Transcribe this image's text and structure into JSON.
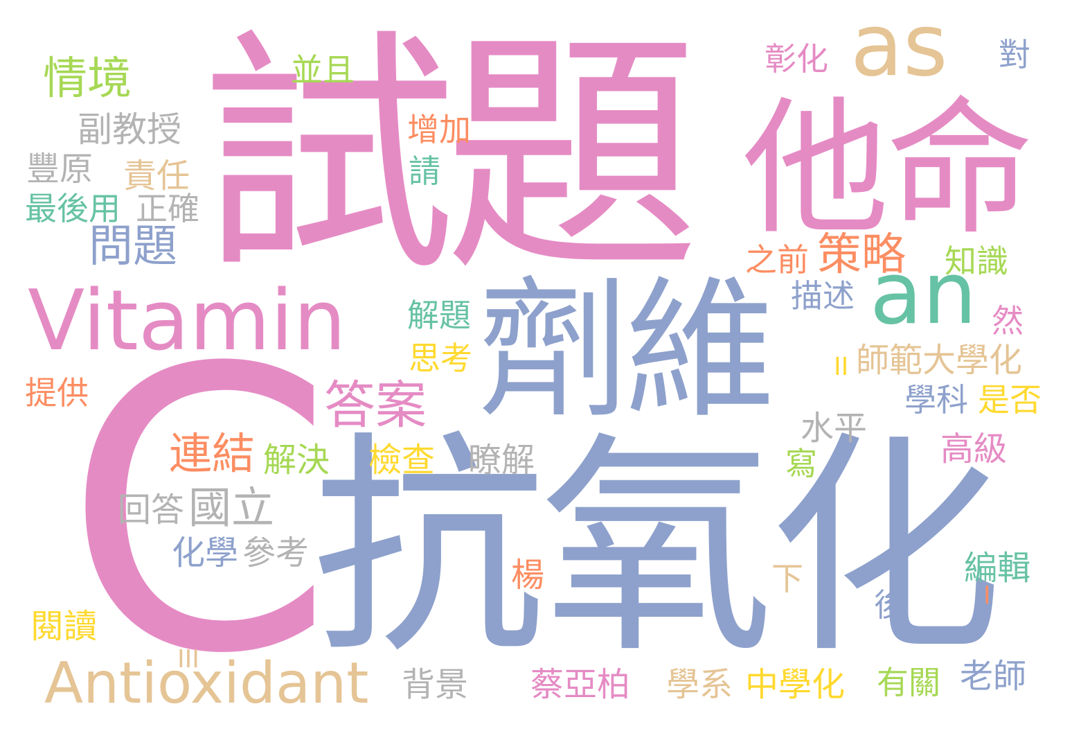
{
  "palette": {
    "pink": "#e58bc4",
    "blue": "#8ea1cc",
    "tan": "#e5c495",
    "teal": "#66c2a4",
    "green": "#a6d854",
    "orange": "#fc8d62",
    "yellow": "#ffd92f",
    "gray": "#b3b3b3"
  },
  "words": [
    {
      "text": "試題",
      "color": "pink"
    },
    {
      "text": "C",
      "color": "pink"
    },
    {
      "text": "抗氧化",
      "color": "blue"
    },
    {
      "text": "他命",
      "color": "pink"
    },
    {
      "text": "劑維",
      "color": "blue"
    },
    {
      "text": "Vitamin",
      "color": "pink"
    },
    {
      "text": "as",
      "color": "tan"
    },
    {
      "text": "an",
      "color": "teal"
    },
    {
      "text": "Antioxidant",
      "color": "tan"
    },
    {
      "text": "情境",
      "color": "green"
    },
    {
      "text": "並且",
      "color": "green"
    },
    {
      "text": "副教授",
      "color": "gray"
    },
    {
      "text": "豐原",
      "color": "gray"
    },
    {
      "text": "責任",
      "color": "tan"
    },
    {
      "text": "最後用",
      "color": "teal"
    },
    {
      "text": "正確",
      "color": "gray"
    },
    {
      "text": "問題",
      "color": "blue"
    },
    {
      "text": "增加",
      "color": "orange"
    },
    {
      "text": "請",
      "color": "teal"
    },
    {
      "text": "彰化",
      "color": "pink"
    },
    {
      "text": "對",
      "color": "blue"
    },
    {
      "text": "策略",
      "color": "orange"
    },
    {
      "text": "之前",
      "color": "orange"
    },
    {
      "text": "知識",
      "color": "green"
    },
    {
      "text": "描述",
      "color": "blue"
    },
    {
      "text": "然",
      "color": "pink"
    },
    {
      "text": "解題",
      "color": "teal"
    },
    {
      "text": "思考",
      "color": "yellow"
    },
    {
      "text": "答案",
      "color": "pink"
    },
    {
      "text": "師範大學化",
      "color": "tan"
    },
    {
      "text": "II",
      "color": "yellow"
    },
    {
      "text": "學科",
      "color": "blue"
    },
    {
      "text": "是否",
      "color": "yellow"
    },
    {
      "text": "提供",
      "color": "orange"
    },
    {
      "text": "水平",
      "color": "gray"
    },
    {
      "text": "連結",
      "color": "orange"
    },
    {
      "text": "解決",
      "color": "green"
    },
    {
      "text": "檢查",
      "color": "yellow"
    },
    {
      "text": "瞭解",
      "color": "gray"
    },
    {
      "text": "高級",
      "color": "pink"
    },
    {
      "text": "寫",
      "color": "green"
    },
    {
      "text": "回答",
      "color": "gray"
    },
    {
      "text": "國立",
      "color": "gray"
    },
    {
      "text": "化學",
      "color": "blue"
    },
    {
      "text": "參考",
      "color": "gray"
    },
    {
      "text": "楊",
      "color": "orange"
    },
    {
      "text": "下",
      "color": "tan"
    },
    {
      "text": "編輯",
      "color": "teal"
    },
    {
      "text": "I",
      "color": "orange"
    },
    {
      "text": "後",
      "color": "blue"
    },
    {
      "text": "閱讀",
      "color": "yellow"
    },
    {
      "text": "III",
      "color": "tan"
    },
    {
      "text": "背景",
      "color": "gray"
    },
    {
      "text": "蔡亞柏",
      "color": "pink"
    },
    {
      "text": "學系",
      "color": "tan"
    },
    {
      "text": "中學化",
      "color": "yellow"
    },
    {
      "text": "有關",
      "color": "green"
    },
    {
      "text": "老師",
      "color": "blue"
    }
  ]
}
